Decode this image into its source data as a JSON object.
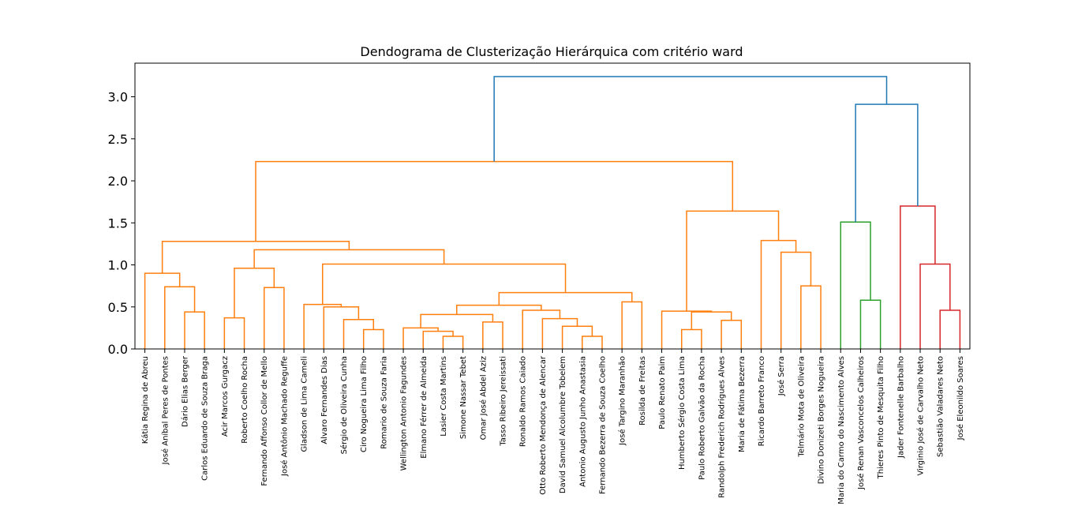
{
  "chart_data": {
    "type": "dendrogram",
    "title": "Dendograma de Clusterização Hierárquica com critério ward",
    "xlabel": "",
    "ylabel": "",
    "ylim": [
      0,
      3.4
    ],
    "yticks": [
      0.0,
      0.5,
      1.0,
      1.5,
      2.0,
      2.5,
      3.0
    ],
    "ytick_labels": [
      "0.0",
      "0.5",
      "1.0",
      "1.5",
      "2.0",
      "2.5",
      "3.0"
    ],
    "grid": false,
    "leaves": [
      "Kátia Regina de Abreu",
      "José Aníbal Peres de Pontes",
      "Dário Elias Berger",
      "Carlos Eduardo de Souza Braga",
      "Acir Marcos Gurgacz",
      "Roberto Coelho Rocha",
      "Fernando Affonso Collor de Mello",
      "José Antônio Machado Reguffe",
      "Gladson de Lima Cameli",
      "Alvaro Fernandes Dias",
      "Sérgio de Oliveira Cunha",
      "Ciro Nogueira Lima Filho",
      "Romario de Souza Faria",
      "Wellington Antonio Fagundes",
      "Elmano Férrer de Almeida",
      "Lasier Costa Martins",
      "Simone Nassar Tebet",
      "Omar José Abdel Aziz",
      "Tasso Ribeiro Jereissati",
      "Ronaldo Ramos Caiado",
      "Otto Roberto Mendonça de Alencar",
      "David Samuel Alcolumbre Tobelem",
      "Antonio Augusto Junho Anastasia",
      "Fernando Bezerra de Souza Coelho",
      "José Targino Maranhão",
      "Rosilda de Freitas",
      "Paulo Renato Paim",
      "Humberto Sérgio Costa Lima",
      "Paulo Roberto Galvão da Rocha",
      "Randolph Frederich Rodrigues Alves",
      "Maria de Fátima Bezerra",
      "Ricardo Barreto Franco",
      "José Serra",
      "Telmário Mota de Oliveira",
      "Divino Donizeti Borges Nogueira",
      "Maria do Carmo do Nascimento Alves",
      "José Renan Vasconcelos Calheiros",
      "Thieres Pinto de Mesquita Filho",
      "Jader Fontenelle Barbalho",
      "Virginio José de Carvalho Neto",
      "Sebastião Valadares Neto",
      "José Eleonildo Soares"
    ],
    "colors": {
      "orange": "#ff7f0e",
      "green": "#2ca02c",
      "red": "#d62728",
      "blue": "#1f77b4"
    },
    "links": [
      {
        "l": 15,
        "r": 16,
        "h": 0.15,
        "c": "orange"
      },
      {
        "l": 23,
        "r": 22,
        "h": 0.15,
        "c": "orange"
      },
      {
        "l": 14,
        "r": "L0",
        "h": 0.21,
        "c": "orange"
      },
      {
        "l": 11,
        "r": 12,
        "h": 0.23,
        "c": "orange"
      },
      {
        "l": 27,
        "r": 28,
        "h": 0.23,
        "c": "orange"
      },
      {
        "l": 13,
        "r": "L2",
        "h": 0.25,
        "c": "orange"
      },
      {
        "l": 21,
        "r": "L1",
        "h": 0.27,
        "c": "orange"
      },
      {
        "l": 17,
        "r": 18,
        "h": 0.32,
        "c": "orange"
      },
      {
        "l": 29,
        "r": 30,
        "h": 0.34,
        "c": "orange"
      },
      {
        "l": 10,
        "r": "L3",
        "h": 0.35,
        "c": "orange"
      },
      {
        "l": 20,
        "r": "L6",
        "h": 0.36,
        "c": "orange"
      },
      {
        "l": 4,
        "r": 5,
        "h": 0.37,
        "c": "orange"
      },
      {
        "l": "L5",
        "r": "L7",
        "h": 0.41,
        "c": "orange"
      },
      {
        "l": 2,
        "r": 3,
        "h": 0.44,
        "c": "orange"
      },
      {
        "l": "L4",
        "r": "L8",
        "h": 0.44,
        "c": "orange"
      },
      {
        "l": 26,
        "r": "L14",
        "h": 0.45,
        "c": "orange"
      },
      {
        "l": 19,
        "r": "L10",
        "h": 0.46,
        "c": "orange"
      },
      {
        "l": 40,
        "r": 41,
        "h": 0.46,
        "c": "red"
      },
      {
        "l": 9,
        "r": "L9",
        "h": 0.5,
        "c": "orange"
      },
      {
        "l": "L12",
        "r": "L16",
        "h": 0.52,
        "c": "orange"
      },
      {
        "l": 8,
        "r": "L18",
        "h": 0.53,
        "c": "orange"
      },
      {
        "l": 24,
        "r": 25,
        "h": 0.56,
        "c": "orange"
      },
      {
        "l": 36,
        "r": 37,
        "h": 0.58,
        "c": "green"
      },
      {
        "l": "L19",
        "r": "L21",
        "h": 0.67,
        "c": "orange"
      },
      {
        "l": 6,
        "r": 7,
        "h": 0.73,
        "c": "orange"
      },
      {
        "l": 1,
        "r": "L13",
        "h": 0.74,
        "c": "orange"
      },
      {
        "l": 33,
        "r": 34,
        "h": 0.75,
        "c": "orange"
      },
      {
        "l": 0,
        "r": "L25",
        "h": 0.9,
        "c": "orange"
      },
      {
        "l": "L11",
        "r": "L24",
        "h": 0.96,
        "c": "orange"
      },
      {
        "l": "L20",
        "r": "L23",
        "h": 1.01,
        "c": "orange"
      },
      {
        "l": 39,
        "r": "L17",
        "h": 1.01,
        "c": "red"
      },
      {
        "l": 32,
        "r": "L26",
        "h": 1.15,
        "c": "orange"
      },
      {
        "l": "L28",
        "r": "L29",
        "h": 1.18,
        "c": "orange"
      },
      {
        "l": "L27",
        "r": "L32",
        "h": 1.28,
        "c": "orange"
      },
      {
        "l": 31,
        "r": "L31",
        "h": 1.29,
        "c": "orange"
      },
      {
        "l": 35,
        "r": "L22",
        "h": 1.51,
        "c": "green"
      },
      {
        "l": "L15",
        "r": "L34",
        "h": 1.64,
        "c": "orange"
      },
      {
        "l": 38,
        "r": "L30",
        "h": 1.7,
        "c": "red"
      },
      {
        "l": "L33",
        "r": "L36",
        "h": 2.23,
        "c": "orange"
      },
      {
        "l": "L35",
        "r": "L37",
        "h": 2.91,
        "c": "blue"
      },
      {
        "l": "L38",
        "r": "L39",
        "h": 3.24,
        "c": "blue"
      }
    ]
  }
}
